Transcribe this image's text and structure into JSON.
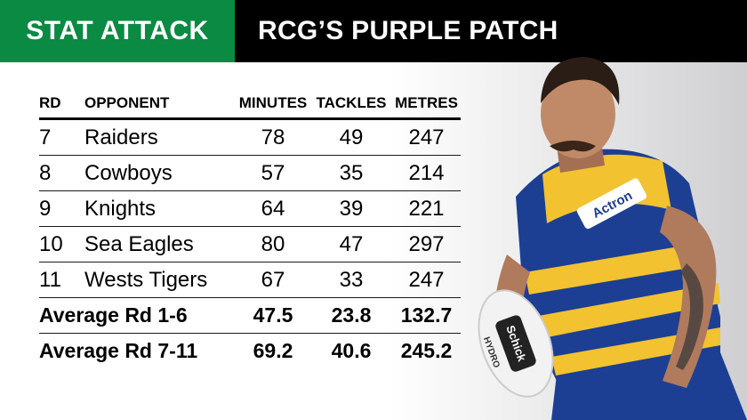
{
  "header": {
    "label": "STAT ATTACK",
    "title": "RCG’S PURPLE PATCH"
  },
  "table": {
    "columns": [
      "RD",
      "OPPONENT",
      "MINUTES",
      "TACKLES",
      "METRES"
    ],
    "rows": [
      [
        "7",
        "Raiders",
        "78",
        "49",
        "247"
      ],
      [
        "8",
        "Cowboys",
        "57",
        "35",
        "214"
      ],
      [
        "9",
        "Knights",
        "64",
        "39",
        "221"
      ],
      [
        "10",
        "Sea Eagles",
        "80",
        "47",
        "297"
      ],
      [
        "11",
        "Wests Tigers",
        "67",
        "33",
        "247"
      ]
    ],
    "averages": [
      [
        "Average Rd 1-6",
        "47.5",
        "23.8",
        "132.7"
      ],
      [
        "Average Rd 7-11",
        "69.2",
        "40.6",
        "245.2"
      ]
    ]
  },
  "player": {
    "sponsor_chest": "Actron",
    "ball_brand": "Schick",
    "ball_text": "HYDRO"
  },
  "colors": {
    "accent_green": "#0b8a43",
    "header_black": "#000000",
    "jersey_blue": "#1c3f94",
    "jersey_gold": "#f2c230"
  }
}
